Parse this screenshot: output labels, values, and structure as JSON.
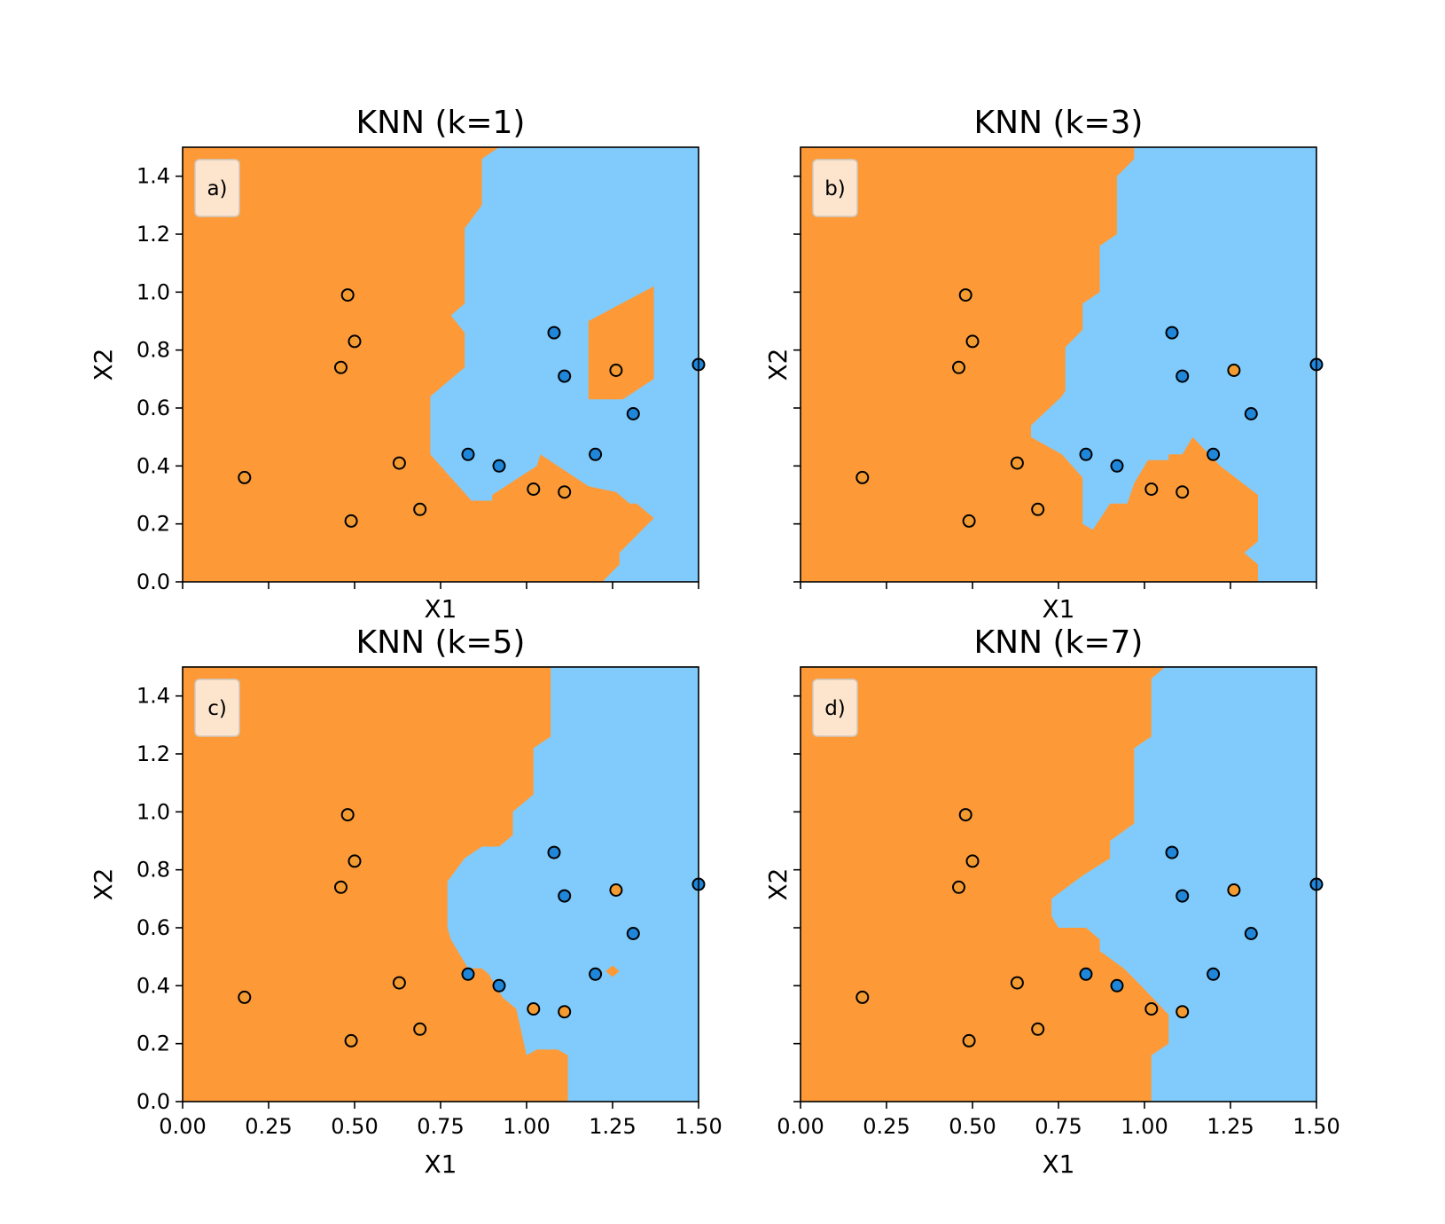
{
  "colors": {
    "orange_region": "#fd9a37",
    "blue_region": "#80cbfc",
    "orange_point": "#f39a30",
    "blue_point": "#1f86d9",
    "label_box": "#fde9d6"
  },
  "chart_data": [
    {
      "type": "scatter",
      "title": "KNN (k=1)",
      "panel_label": "a)",
      "xlabel": "X1",
      "ylabel": "X2",
      "xlim": [
        0,
        1.5
      ],
      "ylim": [
        0,
        1.5
      ],
      "xticks": [
        "0.00",
        "0.25",
        "0.50",
        "0.75",
        "1.00",
        "1.25",
        "1.50"
      ],
      "yticks": [
        "0.0",
        "0.2",
        "0.4",
        "0.6",
        "0.8",
        "1.0",
        "1.2",
        "1.4"
      ],
      "show_xtick_labels": false,
      "show_ytick_labels": true,
      "legend_position": "top-left",
      "blue_region": [
        [
          0.92,
          1.5
        ],
        [
          1.5,
          1.5
        ],
        [
          1.5,
          0
        ],
        [
          1.22,
          0
        ],
        [
          1.27,
          0.06
        ],
        [
          1.27,
          0.1
        ],
        [
          1.37,
          0.22
        ],
        [
          1.32,
          0.27
        ],
        [
          1.3,
          0.27
        ],
        [
          1.26,
          0.31
        ],
        [
          1.18,
          0.33
        ],
        [
          1.04,
          0.44
        ],
        [
          1.03,
          0.4
        ],
        [
          0.9,
          0.3
        ],
        [
          0.9,
          0.28
        ],
        [
          0.84,
          0.28
        ],
        [
          0.78,
          0.36
        ],
        [
          0.72,
          0.44
        ],
        [
          0.72,
          0.64
        ],
        [
          0.82,
          0.74
        ],
        [
          0.82,
          0.86
        ],
        [
          0.78,
          0.92
        ],
        [
          0.82,
          0.96
        ],
        [
          0.82,
          1.22
        ],
        [
          0.87,
          1.3
        ],
        [
          0.87,
          1.46
        ]
      ],
      "orange_islands": [
        [
          [
            1.18,
            0.63
          ],
          [
            1.18,
            0.9
          ],
          [
            1.37,
            1.02
          ],
          [
            1.37,
            0.7
          ],
          [
            1.28,
            0.63
          ]
        ]
      ],
      "points": [
        {
          "x": 0.18,
          "y": 0.36,
          "class": "orange"
        },
        {
          "x": 0.46,
          "y": 0.74,
          "class": "orange"
        },
        {
          "x": 0.48,
          "y": 0.99,
          "class": "orange"
        },
        {
          "x": 0.5,
          "y": 0.83,
          "class": "orange"
        },
        {
          "x": 0.49,
          "y": 0.21,
          "class": "orange"
        },
        {
          "x": 0.63,
          "y": 0.41,
          "class": "orange"
        },
        {
          "x": 0.69,
          "y": 0.25,
          "class": "orange"
        },
        {
          "x": 0.83,
          "y": 0.44,
          "class": "blue"
        },
        {
          "x": 0.92,
          "y": 0.4,
          "class": "blue"
        },
        {
          "x": 1.02,
          "y": 0.32,
          "class": "orange"
        },
        {
          "x": 1.08,
          "y": 0.86,
          "class": "blue"
        },
        {
          "x": 1.11,
          "y": 0.71,
          "class": "blue"
        },
        {
          "x": 1.11,
          "y": 0.31,
          "class": "orange"
        },
        {
          "x": 1.2,
          "y": 0.44,
          "class": "blue"
        },
        {
          "x": 1.26,
          "y": 0.73,
          "class": "orange"
        },
        {
          "x": 1.31,
          "y": 0.58,
          "class": "blue"
        },
        {
          "x": 1.5,
          "y": 0.75,
          "class": "blue"
        }
      ]
    },
    {
      "type": "scatter",
      "title": "KNN (k=3)",
      "panel_label": "b)",
      "xlabel": "X1",
      "ylabel": "X2",
      "xlim": [
        0,
        1.5
      ],
      "ylim": [
        0,
        1.5
      ],
      "xticks": [
        "0.00",
        "0.25",
        "0.50",
        "0.75",
        "1.00",
        "1.25",
        "1.50"
      ],
      "yticks": [
        "0.0",
        "0.2",
        "0.4",
        "0.6",
        "0.8",
        "1.0",
        "1.2",
        "1.4"
      ],
      "show_xtick_labels": false,
      "show_ytick_labels": false,
      "legend_position": "top-left",
      "blue_region": [
        [
          0.97,
          1.5
        ],
        [
          1.5,
          1.5
        ],
        [
          1.5,
          0
        ],
        [
          1.33,
          0
        ],
        [
          1.33,
          0.06
        ],
        [
          1.29,
          0.1
        ],
        [
          1.33,
          0.14
        ],
        [
          1.33,
          0.3
        ],
        [
          1.22,
          0.4
        ],
        [
          1.14,
          0.5
        ],
        [
          1.11,
          0.44
        ],
        [
          1.07,
          0.44
        ],
        [
          1.07,
          0.42
        ],
        [
          1.01,
          0.42
        ],
        [
          0.97,
          0.34
        ],
        [
          0.95,
          0.27
        ],
        [
          0.9,
          0.27
        ],
        [
          0.85,
          0.18
        ],
        [
          0.82,
          0.2
        ],
        [
          0.82,
          0.36
        ],
        [
          0.76,
          0.44
        ],
        [
          0.67,
          0.5
        ],
        [
          0.67,
          0.54
        ],
        [
          0.76,
          0.64
        ],
        [
          0.77,
          0.66
        ],
        [
          0.77,
          0.81
        ],
        [
          0.82,
          0.87
        ],
        [
          0.82,
          0.96
        ],
        [
          0.87,
          1.0
        ],
        [
          0.87,
          1.16
        ],
        [
          0.92,
          1.2
        ],
        [
          0.92,
          1.4
        ],
        [
          0.97,
          1.46
        ]
      ],
      "orange_islands": [],
      "points": [
        {
          "x": 0.18,
          "y": 0.36,
          "class": "orange"
        },
        {
          "x": 0.46,
          "y": 0.74,
          "class": "orange"
        },
        {
          "x": 0.48,
          "y": 0.99,
          "class": "orange"
        },
        {
          "x": 0.5,
          "y": 0.83,
          "class": "orange"
        },
        {
          "x": 0.49,
          "y": 0.21,
          "class": "orange"
        },
        {
          "x": 0.63,
          "y": 0.41,
          "class": "orange"
        },
        {
          "x": 0.69,
          "y": 0.25,
          "class": "orange"
        },
        {
          "x": 0.83,
          "y": 0.44,
          "class": "blue"
        },
        {
          "x": 0.92,
          "y": 0.4,
          "class": "blue"
        },
        {
          "x": 1.02,
          "y": 0.32,
          "class": "orange"
        },
        {
          "x": 1.08,
          "y": 0.86,
          "class": "blue"
        },
        {
          "x": 1.11,
          "y": 0.71,
          "class": "blue"
        },
        {
          "x": 1.11,
          "y": 0.31,
          "class": "orange"
        },
        {
          "x": 1.2,
          "y": 0.44,
          "class": "blue"
        },
        {
          "x": 1.26,
          "y": 0.73,
          "class": "orange"
        },
        {
          "x": 1.31,
          "y": 0.58,
          "class": "blue"
        },
        {
          "x": 1.5,
          "y": 0.75,
          "class": "blue"
        }
      ]
    },
    {
      "type": "scatter",
      "title": "KNN (k=5)",
      "panel_label": "c)",
      "xlabel": "X1",
      "ylabel": "X2",
      "xlim": [
        0,
        1.5
      ],
      "ylim": [
        0,
        1.5
      ],
      "xticks": [
        "0.00",
        "0.25",
        "0.50",
        "0.75",
        "1.00",
        "1.25",
        "1.50"
      ],
      "yticks": [
        "0.0",
        "0.2",
        "0.4",
        "0.6",
        "0.8",
        "1.0",
        "1.2",
        "1.4"
      ],
      "show_xtick_labels": true,
      "show_ytick_labels": true,
      "legend_position": "top-left",
      "blue_region": [
        [
          1.07,
          1.5
        ],
        [
          1.5,
          1.5
        ],
        [
          1.5,
          0
        ],
        [
          1.12,
          0
        ],
        [
          1.12,
          0.16
        ],
        [
          1.09,
          0.18
        ],
        [
          1.03,
          0.18
        ],
        [
          1.0,
          0.16
        ],
        [
          0.97,
          0.32
        ],
        [
          0.93,
          0.36
        ],
        [
          0.89,
          0.44
        ],
        [
          0.87,
          0.46
        ],
        [
          0.83,
          0.46
        ],
        [
          0.78,
          0.56
        ],
        [
          0.77,
          0.6
        ],
        [
          0.77,
          0.76
        ],
        [
          0.82,
          0.84
        ],
        [
          0.87,
          0.88
        ],
        [
          0.92,
          0.88
        ],
        [
          0.96,
          0.92
        ],
        [
          0.96,
          1.0
        ],
        [
          1.02,
          1.06
        ],
        [
          1.02,
          1.22
        ],
        [
          1.07,
          1.26
        ]
      ],
      "orange_islands": [
        [
          [
            1.23,
            0.45
          ],
          [
            1.25,
            0.47
          ],
          [
            1.27,
            0.45
          ],
          [
            1.25,
            0.43
          ]
        ]
      ],
      "points": [
        {
          "x": 0.18,
          "y": 0.36,
          "class": "orange"
        },
        {
          "x": 0.46,
          "y": 0.74,
          "class": "orange"
        },
        {
          "x": 0.48,
          "y": 0.99,
          "class": "orange"
        },
        {
          "x": 0.5,
          "y": 0.83,
          "class": "orange"
        },
        {
          "x": 0.49,
          "y": 0.21,
          "class": "orange"
        },
        {
          "x": 0.63,
          "y": 0.41,
          "class": "orange"
        },
        {
          "x": 0.69,
          "y": 0.25,
          "class": "orange"
        },
        {
          "x": 0.83,
          "y": 0.44,
          "class": "blue"
        },
        {
          "x": 0.92,
          "y": 0.4,
          "class": "blue"
        },
        {
          "x": 1.02,
          "y": 0.32,
          "class": "orange"
        },
        {
          "x": 1.08,
          "y": 0.86,
          "class": "blue"
        },
        {
          "x": 1.11,
          "y": 0.71,
          "class": "blue"
        },
        {
          "x": 1.11,
          "y": 0.31,
          "class": "orange"
        },
        {
          "x": 1.2,
          "y": 0.44,
          "class": "blue"
        },
        {
          "x": 1.26,
          "y": 0.73,
          "class": "orange"
        },
        {
          "x": 1.31,
          "y": 0.58,
          "class": "blue"
        },
        {
          "x": 1.5,
          "y": 0.75,
          "class": "blue"
        }
      ]
    },
    {
      "type": "scatter",
      "title": "KNN (k=7)",
      "panel_label": "d)",
      "xlabel": "X1",
      "ylabel": "X2",
      "xlim": [
        0,
        1.5
      ],
      "ylim": [
        0,
        1.5
      ],
      "xticks": [
        "0.00",
        "0.25",
        "0.50",
        "0.75",
        "1.00",
        "1.25",
        "1.50"
      ],
      "yticks": [
        "0.0",
        "0.2",
        "0.4",
        "0.6",
        "0.8",
        "1.0",
        "1.2",
        "1.4"
      ],
      "show_xtick_labels": true,
      "show_ytick_labels": false,
      "legend_position": "top-left",
      "blue_region": [
        [
          1.06,
          1.5
        ],
        [
          1.5,
          1.5
        ],
        [
          1.5,
          0
        ],
        [
          1.02,
          0
        ],
        [
          1.02,
          0.16
        ],
        [
          1.07,
          0.2
        ],
        [
          1.07,
          0.3
        ],
        [
          0.99,
          0.4
        ],
        [
          0.94,
          0.46
        ],
        [
          0.87,
          0.52
        ],
        [
          0.87,
          0.56
        ],
        [
          0.83,
          0.6
        ],
        [
          0.75,
          0.6
        ],
        [
          0.73,
          0.64
        ],
        [
          0.73,
          0.7
        ],
        [
          0.82,
          0.78
        ],
        [
          0.9,
          0.84
        ],
        [
          0.9,
          0.9
        ],
        [
          0.97,
          0.96
        ],
        [
          0.97,
          1.22
        ],
        [
          1.02,
          1.26
        ],
        [
          1.02,
          1.46
        ]
      ],
      "orange_islands": [],
      "points": [
        {
          "x": 0.18,
          "y": 0.36,
          "class": "orange"
        },
        {
          "x": 0.46,
          "y": 0.74,
          "class": "orange"
        },
        {
          "x": 0.48,
          "y": 0.99,
          "class": "orange"
        },
        {
          "x": 0.5,
          "y": 0.83,
          "class": "orange"
        },
        {
          "x": 0.49,
          "y": 0.21,
          "class": "orange"
        },
        {
          "x": 0.63,
          "y": 0.41,
          "class": "orange"
        },
        {
          "x": 0.69,
          "y": 0.25,
          "class": "orange"
        },
        {
          "x": 0.83,
          "y": 0.44,
          "class": "blue"
        },
        {
          "x": 0.92,
          "y": 0.4,
          "class": "blue"
        },
        {
          "x": 1.02,
          "y": 0.32,
          "class": "orange"
        },
        {
          "x": 1.08,
          "y": 0.86,
          "class": "blue"
        },
        {
          "x": 1.11,
          "y": 0.71,
          "class": "blue"
        },
        {
          "x": 1.11,
          "y": 0.31,
          "class": "orange"
        },
        {
          "x": 1.2,
          "y": 0.44,
          "class": "blue"
        },
        {
          "x": 1.26,
          "y": 0.73,
          "class": "orange"
        },
        {
          "x": 1.31,
          "y": 0.58,
          "class": "blue"
        },
        {
          "x": 1.5,
          "y": 0.75,
          "class": "blue"
        }
      ]
    }
  ]
}
